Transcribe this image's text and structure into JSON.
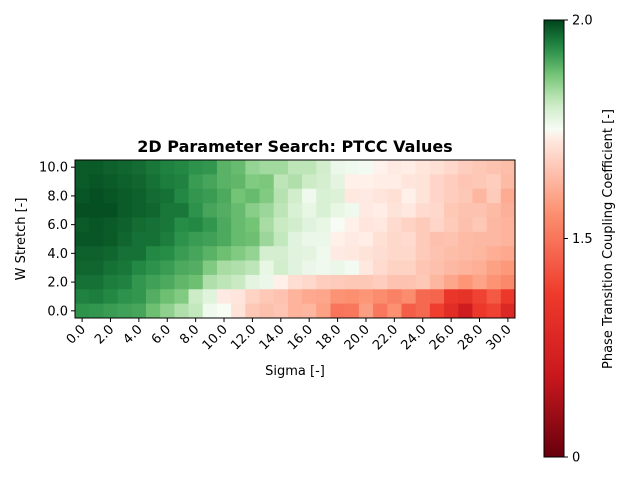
{
  "chart_data": {
    "type": "heatmap",
    "title": "2D Parameter Search: PTCC Values",
    "xlabel": "Sigma [-]",
    "ylabel": "W Stretch [-]",
    "colorbar_label": "Phase Transition Coupling Coefficient [-]",
    "x_values": [
      0,
      1,
      2,
      3,
      4,
      5,
      6,
      7,
      8,
      9,
      10,
      11,
      12,
      13,
      14,
      15,
      16,
      17,
      18,
      19,
      20,
      21,
      22,
      23,
      24,
      25,
      26,
      27,
      28,
      29,
      30
    ],
    "y_values": [
      0,
      1,
      2,
      3,
      4,
      5,
      6,
      7,
      8,
      9,
      10
    ],
    "x_tick_labels": [
      "0.0",
      "2.0",
      "4.0",
      "6.0",
      "8.0",
      "10.0",
      "12.0",
      "14.0",
      "16.0",
      "18.0",
      "20.0",
      "22.0",
      "24.0",
      "26.0",
      "28.0",
      "30.0"
    ],
    "y_tick_labels": [
      "0.0",
      "2.0",
      "4.0",
      "6.0",
      "8.0",
      "10.0"
    ],
    "colorbar_ticks": [
      0,
      1.5,
      2.0
    ],
    "colorbar_tick_labels": [
      "0",
      "1.5",
      "2.0"
    ],
    "color_range": [
      0,
      2.0
    ],
    "center_value": 1.5,
    "colormap": "RdGn (diverging, red low / white center / green high)",
    "z_rows_top_to_bottom": [
      [
        1.96,
        1.96,
        1.95,
        1.94,
        1.93,
        1.91,
        1.89,
        1.88,
        1.86,
        1.85,
        1.79,
        1.77,
        1.7,
        1.68,
        1.68,
        1.64,
        1.64,
        1.6,
        1.53,
        1.52,
        1.51,
        1.49,
        1.46,
        1.47,
        1.44,
        1.42,
        1.39,
        1.35,
        1.33,
        1.31,
        1.29
      ],
      [
        1.96,
        1.97,
        1.96,
        1.95,
        1.94,
        1.92,
        1.9,
        1.89,
        1.84,
        1.82,
        1.79,
        1.78,
        1.73,
        1.74,
        1.64,
        1.66,
        1.61,
        1.59,
        1.55,
        1.48,
        1.48,
        1.47,
        1.47,
        1.44,
        1.43,
        1.38,
        1.35,
        1.32,
        1.33,
        1.35,
        1.28
      ],
      [
        1.97,
        1.98,
        1.97,
        1.96,
        1.95,
        1.93,
        1.92,
        1.88,
        1.85,
        1.84,
        1.81,
        1.75,
        1.77,
        1.73,
        1.65,
        1.6,
        1.52,
        1.58,
        1.57,
        1.45,
        1.46,
        1.44,
        1.42,
        1.48,
        1.43,
        1.38,
        1.35,
        1.33,
        1.26,
        1.34,
        1.22
      ],
      [
        1.98,
        1.98,
        1.98,
        1.96,
        1.95,
        1.94,
        1.91,
        1.91,
        1.86,
        1.82,
        1.8,
        1.77,
        1.72,
        1.69,
        1.64,
        1.58,
        1.54,
        1.58,
        1.54,
        1.52,
        1.46,
        1.47,
        1.43,
        1.45,
        1.4,
        1.39,
        1.33,
        1.31,
        1.31,
        1.28,
        1.24
      ],
      [
        1.96,
        1.97,
        1.96,
        1.95,
        1.93,
        1.92,
        1.91,
        1.87,
        1.88,
        1.85,
        1.81,
        1.77,
        1.75,
        1.67,
        1.62,
        1.6,
        1.56,
        1.54,
        1.5,
        1.48,
        1.44,
        1.45,
        1.4,
        1.37,
        1.34,
        1.38,
        1.34,
        1.3,
        1.33,
        1.27,
        1.25
      ],
      [
        1.97,
        1.97,
        1.96,
        1.94,
        1.92,
        1.92,
        1.9,
        1.86,
        1.84,
        1.83,
        1.81,
        1.77,
        1.76,
        1.69,
        1.63,
        1.56,
        1.53,
        1.53,
        1.48,
        1.46,
        1.47,
        1.42,
        1.39,
        1.4,
        1.34,
        1.3,
        1.31,
        1.28,
        1.27,
        1.27,
        1.25
      ],
      [
        1.95,
        1.95,
        1.94,
        1.92,
        1.92,
        1.88,
        1.87,
        1.84,
        1.82,
        1.79,
        1.76,
        1.73,
        1.7,
        1.59,
        1.59,
        1.56,
        1.55,
        1.52,
        1.46,
        1.45,
        1.43,
        1.41,
        1.39,
        1.39,
        1.34,
        1.31,
        1.29,
        1.28,
        1.26,
        1.23,
        1.21
      ],
      [
        1.94,
        1.94,
        1.92,
        1.91,
        1.88,
        1.86,
        1.84,
        1.81,
        1.8,
        1.73,
        1.67,
        1.66,
        1.64,
        1.54,
        1.6,
        1.56,
        1.53,
        1.52,
        1.53,
        1.51,
        1.45,
        1.4,
        1.37,
        1.37,
        1.32,
        1.3,
        1.27,
        1.25,
        1.23,
        1.18,
        1.15
      ],
      [
        1.92,
        1.92,
        1.9,
        1.89,
        1.85,
        1.83,
        1.81,
        1.78,
        1.76,
        1.66,
        1.64,
        1.62,
        1.55,
        1.53,
        1.48,
        1.41,
        1.39,
        1.35,
        1.34,
        1.33,
        1.33,
        1.35,
        1.31,
        1.31,
        1.33,
        1.26,
        1.2,
        1.14,
        1.19,
        1.13,
        1.08
      ],
      [
        1.89,
        1.9,
        1.88,
        1.86,
        1.85,
        1.8,
        1.76,
        1.73,
        1.61,
        1.56,
        1.46,
        1.44,
        1.37,
        1.33,
        1.31,
        1.25,
        1.21,
        1.2,
        1.13,
        1.11,
        1.14,
        1.1,
        1.05,
        1.1,
        0.95,
        0.93,
        0.7,
        0.66,
        0.78,
        0.88,
        0.72
      ],
      [
        1.86,
        1.85,
        1.84,
        1.83,
        1.82,
        1.76,
        1.71,
        1.66,
        1.63,
        1.52,
        1.5,
        1.43,
        1.33,
        1.3,
        1.32,
        1.25,
        1.26,
        1.18,
        1.0,
        1.01,
        1.17,
        1.01,
        1.12,
        0.9,
        0.95,
        0.76,
        0.6,
        0.42,
        0.72,
        0.78,
        0.55
      ]
    ]
  }
}
